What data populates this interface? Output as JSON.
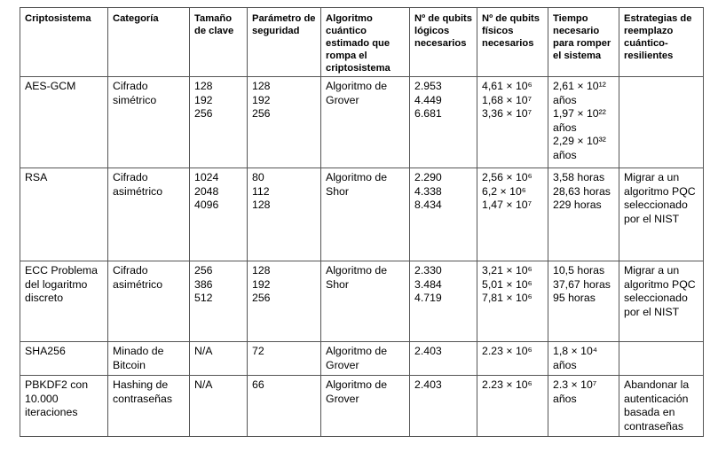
{
  "headers": [
    "Criptosistema",
    "Categoría",
    "Tamaño de clave",
    "Parámetro de seguridad",
    "Algoritmo cuántico estimado que rompa el criptosistema",
    "Nº de qubits lógicos necesarios",
    "Nº de qubits físicos necesarios",
    "Tiempo necesario para romper el sistema",
    "Estrategias de reemplazo cuántico-resilientes"
  ],
  "rows": [
    [
      [
        "AES-GCM"
      ],
      [
        "Cifrado simétrico"
      ],
      [
        "128",
        "192",
        "256"
      ],
      [
        "128",
        "192",
        "256"
      ],
      [
        "Algoritmo de Grover"
      ],
      [
        "2.953",
        "4.449",
        "6.681"
      ],
      [
        "4,61 × 10⁶",
        "1,68 × 10⁷",
        "3,36 × 10⁷"
      ],
      [
        "2,61 × 10¹² años",
        "1,97 × 10²² años",
        "2,29 × 10³² años"
      ],
      [
        ""
      ]
    ],
    [
      [
        "RSA"
      ],
      [
        "Cifrado asimétrico"
      ],
      [
        "1024",
        "2048",
        "4096"
      ],
      [
        "80",
        "112",
        "128"
      ],
      [
        "Algoritmo de Shor"
      ],
      [
        "2.290",
        "4.338",
        "8.434"
      ],
      [
        "2,56 × 10⁶",
        "6,2 × 10⁶",
        "1,47 × 10⁷"
      ],
      [
        "3,58 horas",
        "28,63 horas",
        "229 horas"
      ],
      [
        "Migrar a un algoritmo PQC seleccionado por el NIST"
      ]
    ],
    [
      [
        "ECC Problema del logaritmo discreto"
      ],
      [
        "Cifrado asimétrico"
      ],
      [
        "256",
        "386",
        "512"
      ],
      [
        "128",
        "192",
        "256"
      ],
      [
        "Algoritmo de Shor"
      ],
      [
        "2.330",
        "3.484",
        "4.719"
      ],
      [
        "3,21 × 10⁶",
        "5,01 × 10⁶",
        "7,81 × 10⁶"
      ],
      [
        "10,5 horas",
        "37,67 horas",
        "95 horas"
      ],
      [
        "Migrar a un algoritmo PQC seleccionado por el NIST"
      ]
    ],
    [
      [
        "SHA256"
      ],
      [
        "Minado de Bitcoin"
      ],
      [
        "N/A"
      ],
      [
        "72"
      ],
      [
        "Algoritmo de Grover"
      ],
      [
        "2.403"
      ],
      [
        "2.23 × 10⁶"
      ],
      [
        "1,8 × 10⁴ años"
      ],
      [
        ""
      ]
    ],
    [
      [
        "PBKDF2 con 10.000 iteraciones"
      ],
      [
        "Hashing de contraseñas"
      ],
      [
        "N/A"
      ],
      [
        "66"
      ],
      [
        "Algoritmo de Grover"
      ],
      [
        "2.403"
      ],
      [
        "2.23 × 10⁶"
      ],
      [
        "2.3 × 10⁷ años"
      ],
      [
        "Abandonar la autenticación basada en contraseñas"
      ]
    ]
  ]
}
